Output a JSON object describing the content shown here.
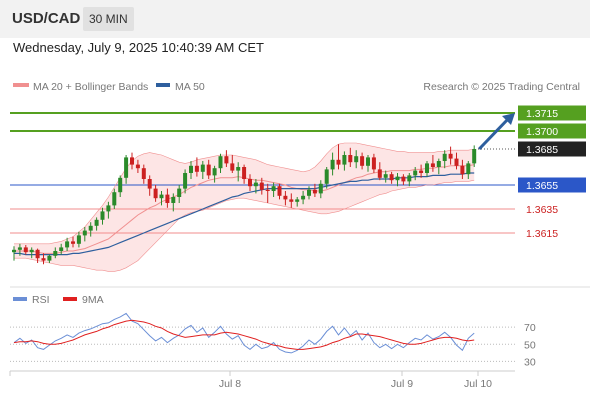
{
  "header": {
    "symbol": "USD/CAD",
    "timeframe": "30 MIN"
  },
  "datetime": "Wednesday, July 9, 2025 10:40:39 AM CET",
  "legend": {
    "bollinger": "MA 20 + Bollinger Bands",
    "ma50": "MA 50",
    "credit": "Research © 2025 Trading Central"
  },
  "rsi_legend": {
    "rsi": "RSI",
    "ma9": "9MA"
  },
  "colors": {
    "bull": "#2a8a2a",
    "bear": "#cc2020",
    "band_fill": "#fde0e0",
    "ma20": "#f09090",
    "ma50": "#2e5f9e",
    "resistance": "#55a020",
    "pivot": "#2b57c8",
    "support": "#f28c8c",
    "rsi": "#6b8fd6",
    "rsi_ma": "#e02020",
    "arrow": "#2e5f9e",
    "last_price_bg": "#222222"
  },
  "chart_data": [
    {
      "type": "candlestick",
      "title": "USD/CAD",
      "timeframe": "30 MIN",
      "ylim": [
        1.358,
        1.373
      ],
      "x_ticks": [
        "Jul 8",
        "Jul 9",
        "Jul 10"
      ],
      "candles": [
        {
          "o": 1.3599,
          "h": 1.3604,
          "l": 1.3592,
          "c": 1.3601
        },
        {
          "o": 1.3601,
          "h": 1.3606,
          "l": 1.3596,
          "c": 1.3603
        },
        {
          "o": 1.3603,
          "h": 1.3605,
          "l": 1.3597,
          "c": 1.3599
        },
        {
          "o": 1.3599,
          "h": 1.3603,
          "l": 1.3594,
          "c": 1.3601
        },
        {
          "o": 1.3601,
          "h": 1.3602,
          "l": 1.359,
          "c": 1.3594
        },
        {
          "o": 1.3594,
          "h": 1.3598,
          "l": 1.3589,
          "c": 1.3592
        },
        {
          "o": 1.3592,
          "h": 1.3597,
          "l": 1.359,
          "c": 1.3596
        },
        {
          "o": 1.3596,
          "h": 1.3603,
          "l": 1.3594,
          "c": 1.36
        },
        {
          "o": 1.36,
          "h": 1.3606,
          "l": 1.3597,
          "c": 1.3603
        },
        {
          "o": 1.3603,
          "h": 1.3611,
          "l": 1.36,
          "c": 1.3608
        },
        {
          "o": 1.3608,
          "h": 1.3612,
          "l": 1.3603,
          "c": 1.3606
        },
        {
          "o": 1.3606,
          "h": 1.3616,
          "l": 1.3603,
          "c": 1.3613
        },
        {
          "o": 1.3613,
          "h": 1.362,
          "l": 1.3608,
          "c": 1.3617
        },
        {
          "o": 1.3617,
          "h": 1.3624,
          "l": 1.3612,
          "c": 1.3621
        },
        {
          "o": 1.3621,
          "h": 1.3628,
          "l": 1.3617,
          "c": 1.3626
        },
        {
          "o": 1.3626,
          "h": 1.3636,
          "l": 1.3622,
          "c": 1.3633
        },
        {
          "o": 1.3633,
          "h": 1.3641,
          "l": 1.3627,
          "c": 1.3638
        },
        {
          "o": 1.3638,
          "h": 1.3652,
          "l": 1.3635,
          "c": 1.3649
        },
        {
          "o": 1.3649,
          "h": 1.3663,
          "l": 1.3645,
          "c": 1.3661
        },
        {
          "o": 1.3661,
          "h": 1.368,
          "l": 1.3656,
          "c": 1.3678
        },
        {
          "o": 1.3678,
          "h": 1.3682,
          "l": 1.3668,
          "c": 1.3672
        },
        {
          "o": 1.3672,
          "h": 1.3676,
          "l": 1.3665,
          "c": 1.3669
        },
        {
          "o": 1.3669,
          "h": 1.3672,
          "l": 1.3656,
          "c": 1.366
        },
        {
          "o": 1.366,
          "h": 1.3663,
          "l": 1.3646,
          "c": 1.3652
        },
        {
          "o": 1.3652,
          "h": 1.3655,
          "l": 1.3641,
          "c": 1.3644
        },
        {
          "o": 1.3644,
          "h": 1.365,
          "l": 1.3638,
          "c": 1.3647
        },
        {
          "o": 1.3647,
          "h": 1.3652,
          "l": 1.3636,
          "c": 1.364
        },
        {
          "o": 1.364,
          "h": 1.3648,
          "l": 1.3633,
          "c": 1.3645
        },
        {
          "o": 1.3645,
          "h": 1.3655,
          "l": 1.364,
          "c": 1.3652
        },
        {
          "o": 1.3652,
          "h": 1.3668,
          "l": 1.3648,
          "c": 1.3665
        },
        {
          "o": 1.3665,
          "h": 1.3675,
          "l": 1.366,
          "c": 1.3671
        },
        {
          "o": 1.3671,
          "h": 1.3678,
          "l": 1.3662,
          "c": 1.3666
        },
        {
          "o": 1.3666,
          "h": 1.3675,
          "l": 1.366,
          "c": 1.3672
        },
        {
          "o": 1.3672,
          "h": 1.3676,
          "l": 1.366,
          "c": 1.3663
        },
        {
          "o": 1.3663,
          "h": 1.3671,
          "l": 1.3657,
          "c": 1.3669
        },
        {
          "o": 1.3669,
          "h": 1.3681,
          "l": 1.3665,
          "c": 1.3679
        },
        {
          "o": 1.3679,
          "h": 1.3684,
          "l": 1.367,
          "c": 1.3673
        },
        {
          "o": 1.3673,
          "h": 1.368,
          "l": 1.3665,
          "c": 1.3667
        },
        {
          "o": 1.3667,
          "h": 1.3674,
          "l": 1.3658,
          "c": 1.367
        },
        {
          "o": 1.367,
          "h": 1.3672,
          "l": 1.3656,
          "c": 1.366
        },
        {
          "o": 1.366,
          "h": 1.3664,
          "l": 1.365,
          "c": 1.3654
        },
        {
          "o": 1.3654,
          "h": 1.366,
          "l": 1.3648,
          "c": 1.3657
        },
        {
          "o": 1.3657,
          "h": 1.3661,
          "l": 1.3647,
          "c": 1.3651
        },
        {
          "o": 1.3651,
          "h": 1.3656,
          "l": 1.364,
          "c": 1.365
        },
        {
          "o": 1.365,
          "h": 1.3657,
          "l": 1.3645,
          "c": 1.3654
        },
        {
          "o": 1.3654,
          "h": 1.3656,
          "l": 1.3643,
          "c": 1.3646
        },
        {
          "o": 1.3646,
          "h": 1.365,
          "l": 1.3638,
          "c": 1.3643
        },
        {
          "o": 1.3643,
          "h": 1.3648,
          "l": 1.3636,
          "c": 1.3641
        },
        {
          "o": 1.3641,
          "h": 1.3645,
          "l": 1.3637,
          "c": 1.3643
        },
        {
          "o": 1.3643,
          "h": 1.365,
          "l": 1.3639,
          "c": 1.3646
        },
        {
          "o": 1.3646,
          "h": 1.3654,
          "l": 1.3643,
          "c": 1.3651
        },
        {
          "o": 1.3651,
          "h": 1.3656,
          "l": 1.3645,
          "c": 1.3648
        },
        {
          "o": 1.3648,
          "h": 1.3659,
          "l": 1.3644,
          "c": 1.3656
        },
        {
          "o": 1.3656,
          "h": 1.367,
          "l": 1.3652,
          "c": 1.3668
        },
        {
          "o": 1.3668,
          "h": 1.3682,
          "l": 1.3663,
          "c": 1.3676
        },
        {
          "o": 1.3676,
          "h": 1.3689,
          "l": 1.3668,
          "c": 1.3672
        },
        {
          "o": 1.3672,
          "h": 1.3683,
          "l": 1.3667,
          "c": 1.368
        },
        {
          "o": 1.368,
          "h": 1.3686,
          "l": 1.367,
          "c": 1.3674
        },
        {
          "o": 1.3674,
          "h": 1.3684,
          "l": 1.3669,
          "c": 1.3679
        },
        {
          "o": 1.3679,
          "h": 1.3682,
          "l": 1.3668,
          "c": 1.3671
        },
        {
          "o": 1.3671,
          "h": 1.368,
          "l": 1.3666,
          "c": 1.3678
        },
        {
          "o": 1.3678,
          "h": 1.3681,
          "l": 1.3665,
          "c": 1.3668
        },
        {
          "o": 1.3668,
          "h": 1.3674,
          "l": 1.3659,
          "c": 1.3661
        },
        {
          "o": 1.3661,
          "h": 1.3667,
          "l": 1.3657,
          "c": 1.3664
        },
        {
          "o": 1.3664,
          "h": 1.3666,
          "l": 1.3656,
          "c": 1.3659
        },
        {
          "o": 1.3659,
          "h": 1.3665,
          "l": 1.3654,
          "c": 1.3662
        },
        {
          "o": 1.3662,
          "h": 1.3664,
          "l": 1.3655,
          "c": 1.3658
        },
        {
          "o": 1.3658,
          "h": 1.3665,
          "l": 1.3654,
          "c": 1.3663
        },
        {
          "o": 1.3663,
          "h": 1.367,
          "l": 1.3659,
          "c": 1.3667
        },
        {
          "o": 1.3667,
          "h": 1.3672,
          "l": 1.3661,
          "c": 1.3665
        },
        {
          "o": 1.3665,
          "h": 1.3675,
          "l": 1.3662,
          "c": 1.3673
        },
        {
          "o": 1.3673,
          "h": 1.368,
          "l": 1.3666,
          "c": 1.367
        },
        {
          "o": 1.367,
          "h": 1.3677,
          "l": 1.3664,
          "c": 1.3675
        },
        {
          "o": 1.3675,
          "h": 1.3684,
          "l": 1.3669,
          "c": 1.3681
        },
        {
          "o": 1.3681,
          "h": 1.3687,
          "l": 1.3672,
          "c": 1.3677
        },
        {
          "o": 1.3677,
          "h": 1.3682,
          "l": 1.3668,
          "c": 1.3671
        },
        {
          "o": 1.3671,
          "h": 1.3676,
          "l": 1.366,
          "c": 1.3664
        },
        {
          "o": 1.3664,
          "h": 1.3675,
          "l": 1.366,
          "c": 1.3673
        },
        {
          "o": 1.3673,
          "h": 1.3688,
          "l": 1.367,
          "c": 1.3685
        }
      ],
      "indicators": {
        "ma20": [
          1.36,
          1.36,
          1.36,
          1.36,
          1.3599,
          1.3598,
          1.3598,
          1.3598,
          1.3599,
          1.36,
          1.36,
          1.3601,
          1.3602,
          1.3604,
          1.3606,
          1.3608,
          1.361,
          1.3614,
          1.3618,
          1.3622,
          1.3626,
          1.363,
          1.3633,
          1.3636,
          1.3638,
          1.3641,
          1.3643,
          1.3645,
          1.3647,
          1.365,
          1.3653,
          1.3655,
          1.3657,
          1.3659,
          1.366,
          1.3661,
          1.3661,
          1.3661,
          1.3662,
          1.3661,
          1.366,
          1.3659,
          1.3659,
          1.3658,
          1.3657,
          1.3656,
          1.3655,
          1.3653,
          1.3652,
          1.3651,
          1.3651,
          1.365,
          1.365,
          1.3651,
          1.3653,
          1.3655,
          1.3657,
          1.3659,
          1.3661,
          1.3662,
          1.3664,
          1.3665,
          1.3666,
          1.3666,
          1.3667,
          1.3667,
          1.3667,
          1.3667,
          1.3668,
          1.3668,
          1.3669,
          1.3669,
          1.367,
          1.367,
          1.3671,
          1.3671,
          1.3671,
          1.3671,
          1.3672
        ],
        "bollinger_upper": [
          1.3606,
          1.3606,
          1.3606,
          1.3606,
          1.3606,
          1.3606,
          1.3606,
          1.3607,
          1.3608,
          1.361,
          1.3612,
          1.3616,
          1.362,
          1.3626,
          1.3632,
          1.3638,
          1.3645,
          1.3653,
          1.3661,
          1.3669,
          1.3675,
          1.3679,
          1.3681,
          1.3682,
          1.3681,
          1.368,
          1.3678,
          1.3676,
          1.3674,
          1.3673,
          1.3674,
          1.3676,
          1.3677,
          1.3678,
          1.3679,
          1.368,
          1.368,
          1.368,
          1.3679,
          1.3678,
          1.3677,
          1.3676,
          1.3674,
          1.3672,
          1.3671,
          1.367,
          1.3669,
          1.3668,
          1.3667,
          1.3666,
          1.3667,
          1.367,
          1.3675,
          1.3681,
          1.3686,
          1.3689,
          1.369,
          1.369,
          1.369,
          1.3689,
          1.3688,
          1.3687,
          1.3686,
          1.3685,
          1.3684,
          1.3683,
          1.3683,
          1.3682,
          1.3682,
          1.3682,
          1.3682,
          1.3682,
          1.3683,
          1.3683,
          1.3684,
          1.3684,
          1.3684,
          1.3684,
          1.3685
        ],
        "bollinger_lower": [
          1.3594,
          1.3594,
          1.3594,
          1.3593,
          1.3592,
          1.3591,
          1.359,
          1.3589,
          1.3588,
          1.3588,
          1.3588,
          1.3587,
          1.3586,
          1.3585,
          1.3584,
          1.3584,
          1.3583,
          1.3583,
          1.3584,
          1.3586,
          1.3589,
          1.3592,
          1.3597,
          1.3602,
          1.3607,
          1.3612,
          1.3617,
          1.3622,
          1.3627,
          1.363,
          1.3632,
          1.3633,
          1.3634,
          1.3636,
          1.3638,
          1.364,
          1.3642,
          1.3643,
          1.3644,
          1.3644,
          1.3643,
          1.3642,
          1.3641,
          1.364,
          1.3639,
          1.3638,
          1.3637,
          1.3636,
          1.3635,
          1.3634,
          1.3633,
          1.3632,
          1.3631,
          1.3631,
          1.3632,
          1.3633,
          1.3635,
          1.3637,
          1.3639,
          1.3641,
          1.3643,
          1.3645,
          1.3647,
          1.3648,
          1.365,
          1.3651,
          1.3652,
          1.3653,
          1.3653,
          1.3654,
          1.3655,
          1.3655,
          1.3656,
          1.3657,
          1.3657,
          1.3658,
          1.3658,
          1.3658,
          1.3659
        ],
        "ma50": [
          1.3598,
          1.3598,
          1.3597,
          1.3597,
          1.3597,
          1.3597,
          1.3597,
          1.3597,
          1.3597,
          1.3597,
          1.3598,
          1.3598,
          1.3599,
          1.36,
          1.3601,
          1.3602,
          1.3603,
          1.3605,
          1.3607,
          1.3609,
          1.3611,
          1.3613,
          1.3615,
          1.3617,
          1.3619,
          1.3621,
          1.3623,
          1.3625,
          1.3627,
          1.3629,
          1.3631,
          1.3633,
          1.3635,
          1.3637,
          1.3639,
          1.3641,
          1.3643,
          1.3645,
          1.3646,
          1.3648,
          1.3649,
          1.365,
          1.3651,
          1.3652,
          1.3652,
          1.3652,
          1.3652,
          1.3652,
          1.3652,
          1.3652,
          1.3652,
          1.3652,
          1.3653,
          1.3654,
          1.3655,
          1.3656,
          1.3657,
          1.3658,
          1.3658,
          1.3659,
          1.3659,
          1.366,
          1.366,
          1.366,
          1.366,
          1.3661,
          1.3661,
          1.3661,
          1.3662,
          1.3662,
          1.3662,
          1.3663,
          1.3663,
          1.3663,
          1.3664,
          1.3664,
          1.3664,
          1.3665,
          1.3665
        ]
      },
      "levels": [
        {
          "label": "1.3715",
          "value": 1.3715,
          "type": "resistance"
        },
        {
          "label": "1.3700",
          "value": 1.37,
          "type": "resistance"
        },
        {
          "label": "1.3685",
          "value": 1.3685,
          "type": "last"
        },
        {
          "label": "1.3655",
          "value": 1.3655,
          "type": "pivot"
        },
        {
          "label": "1.3635",
          "value": 1.3635,
          "type": "support"
        },
        {
          "label": "1.3615",
          "value": 1.3615,
          "type": "support"
        }
      ],
      "target_arrow": {
        "from": 1.3685,
        "to": 1.3715,
        "direction": "up"
      }
    },
    {
      "type": "line",
      "title": "RSI",
      "ylim": [
        20,
        90
      ],
      "y_ticks": [
        70,
        50,
        30
      ],
      "series": [
        {
          "name": "RSI",
          "values": [
            52,
            57,
            51,
            55,
            46,
            44,
            49,
            54,
            57,
            61,
            58,
            63,
            66,
            68,
            71,
            74,
            75,
            79,
            82,
            86,
            77,
            74,
            67,
            60,
            54,
            58,
            52,
            57,
            61,
            68,
            72,
            64,
            69,
            58,
            64,
            71,
            62,
            56,
            60,
            49,
            44,
            50,
            45,
            47,
            52,
            44,
            41,
            40,
            43,
            48,
            55,
            50,
            56,
            65,
            71,
            61,
            69,
            60,
            66,
            55,
            63,
            52,
            46,
            50,
            45,
            50,
            46,
            52,
            57,
            55,
            61,
            56,
            59,
            64,
            58,
            49,
            43,
            57,
            63
          ]
        },
        {
          "name": "9MA",
          "values": [
            52,
            53,
            53,
            54,
            53,
            51,
            50,
            50,
            51,
            53,
            55,
            58,
            61,
            63,
            65,
            68,
            70,
            73,
            75,
            77,
            78,
            77,
            76,
            74,
            71,
            69,
            65,
            62,
            60,
            58,
            59,
            60,
            61,
            61,
            61,
            63,
            64,
            63,
            62,
            60,
            58,
            56,
            53,
            51,
            49,
            48,
            46,
            45,
            44,
            44,
            45,
            46,
            47,
            49,
            52,
            54,
            57,
            59,
            62,
            62,
            61,
            60,
            59,
            57,
            55,
            53,
            51,
            50,
            50,
            51,
            53,
            55,
            57,
            58,
            58,
            57,
            55,
            54,
            55
          ]
        }
      ]
    }
  ]
}
